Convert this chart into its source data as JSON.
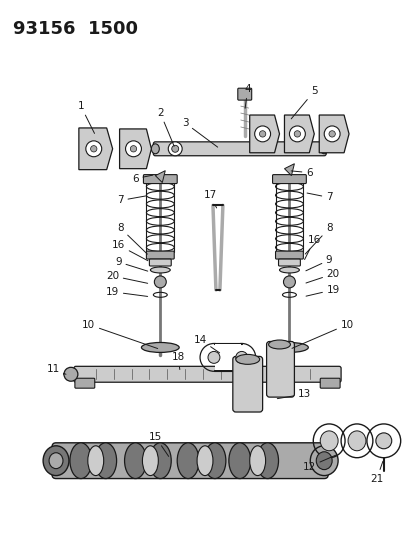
{
  "title": "93156  1500",
  "bg_color": "#ffffff",
  "title_fontsize": 13,
  "fig_width": 4.14,
  "fig_height": 5.33,
  "dpi": 100,
  "dark": "#1a1a1a",
  "gray": "#777777",
  "light_gray": "#cccccc",
  "med_gray": "#aaaaaa"
}
